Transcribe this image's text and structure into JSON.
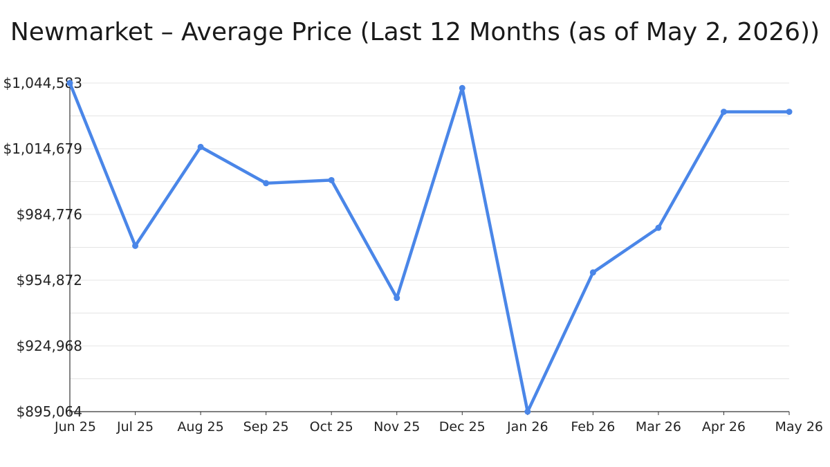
{
  "chart_data": {
    "type": "line",
    "title": "Newmarket – Average Price (Last 12 Months (as of May 2, 2026))",
    "xlabel": "",
    "ylabel": "",
    "categories": [
      "Jun 25",
      "Jul 25",
      "Aug 25",
      "Sep 25",
      "Oct 25",
      "Nov 25",
      "Dec 25",
      "Jan 26",
      "Feb 26",
      "Mar 26",
      "Apr 26",
      "May 26"
    ],
    "series": [
      {
        "values": [
          1044583,
          970500,
          1015500,
          999000,
          1000400,
          946800,
          1042300,
          895064,
          958400,
          978700,
          1031500,
          1031500
        ]
      }
    ],
    "ylim": [
      895064,
      1044583
    ],
    "yticks": [
      895064,
      924968,
      954872,
      984776,
      1014679,
      1044583
    ],
    "ytick_labels": [
      "$895,064",
      "$924,968",
      "$954,872",
      "$984,776",
      "$1,014,679",
      "$1,044,583"
    ],
    "grid": true,
    "legend": "none",
    "colors": {
      "line": "#4a86e8",
      "grid": "#e4e4e4",
      "axis": "#333333"
    }
  }
}
